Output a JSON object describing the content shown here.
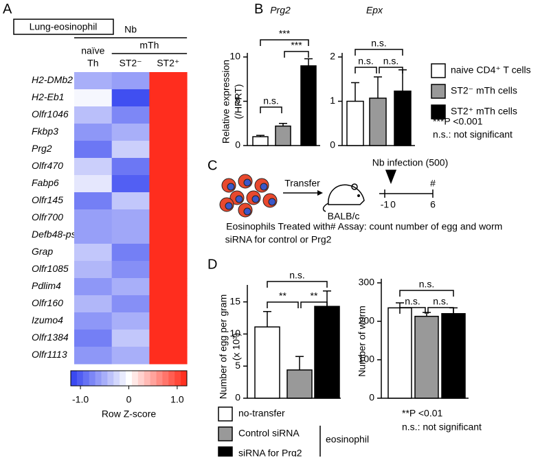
{
  "panel_labels": [
    "A",
    "B",
    "C",
    "D"
  ],
  "chart_data": [
    {
      "type": "heatmap",
      "title": "Lung-eosinophil",
      "groups": [
        {
          "label": "Nb",
          "span": [
            0,
            2
          ]
        },
        {
          "label": "mTh",
          "span": [
            1,
            2
          ]
        }
      ],
      "columns": [
        [
          "naïve",
          "Th"
        ],
        [
          "ST2⁻"
        ],
        [
          "ST2⁺"
        ]
      ],
      "rows": [
        "H2-DMb2",
        "H2-Eb1",
        "Olfr1046",
        "Fkbp3",
        "Prg2",
        "Olfr470",
        "Fabp6",
        "Olfr145",
        "Olfr700",
        "Defb48-ps",
        "Grap",
        "Olfr1085",
        "Pdlim4",
        "Olfr160",
        "Izumo4",
        "Olfr1384",
        "Olfr1113"
      ],
      "z": [
        [
          -0.5,
          -0.6,
          1.15
        ],
        [
          -0.05,
          -1.1,
          1.15
        ],
        [
          -0.4,
          -0.75,
          1.15
        ],
        [
          -0.65,
          -0.5,
          1.15
        ],
        [
          -0.85,
          -0.3,
          1.15
        ],
        [
          -0.3,
          -0.85,
          1.15
        ],
        [
          -0.15,
          -1.0,
          1.15
        ],
        [
          -0.8,
          -0.35,
          1.15
        ],
        [
          -0.6,
          -0.55,
          1.15
        ],
        [
          -0.6,
          -0.55,
          1.15
        ],
        [
          -0.35,
          -0.8,
          1.15
        ],
        [
          -0.45,
          -0.7,
          1.15
        ],
        [
          -0.65,
          -0.5,
          1.15
        ],
        [
          -0.45,
          -0.7,
          1.15
        ],
        [
          -0.65,
          -0.5,
          1.15
        ],
        [
          -0.8,
          -0.35,
          1.15
        ],
        [
          -0.65,
          -0.5,
          1.15
        ]
      ],
      "zlim": [
        -1.2,
        1.2
      ],
      "zticks": [
        {
          "value": -1,
          "label": "-1.0"
        },
        0,
        {
          "value": 1,
          "label": "1.0"
        }
      ],
      "colorbar_label": "Row Z-score",
      "colors": [
        "#2f3ff0",
        "#ffffff",
        "#ff2414"
      ]
    },
    {
      "type": "bar",
      "title": "Prg2",
      "y_label": [
        "Relative expression",
        "(/HPRT)"
      ],
      "values": [
        1.0,
        2.2,
        9.0
      ],
      "errors": [
        0.15,
        0.3,
        0.8
      ],
      "colors": [
        "#ffffff",
        "#999999",
        "#000000"
      ],
      "ylim": [
        0,
        10
      ],
      "yticks": [
        0,
        5,
        10
      ],
      "brackets": [
        {
          "label": "***",
          "between": [
            0,
            2
          ]
        },
        {
          "label": "***",
          "between": [
            1,
            2
          ]
        },
        {
          "label": "n.s.",
          "between": [
            0,
            1
          ]
        }
      ]
    },
    {
      "type": "bar",
      "title": "Epx",
      "values": [
        1.0,
        1.07,
        1.23
      ],
      "errors": [
        0.42,
        0.48,
        0.48
      ],
      "colors": [
        "#ffffff",
        "#999999",
        "#000000"
      ],
      "ylim": [
        0,
        2
      ],
      "yticks": [
        0,
        1,
        2
      ],
      "brackets": [
        {
          "label": "n.s.",
          "between": [
            0,
            2
          ]
        },
        {
          "label": "n.s.",
          "between": [
            0,
            1
          ]
        },
        {
          "label": "n.s.",
          "between": [
            1,
            2
          ]
        }
      ]
    },
    {
      "type": "bar",
      "y_label": [
        "Number of egg per gram",
        "(x 10³)"
      ],
      "values": [
        11.1,
        4.4,
        14.3
      ],
      "errors": [
        2.4,
        2.1,
        2.4
      ],
      "colors": [
        "#ffffff",
        "#999999",
        "#000000"
      ],
      "ylim": [
        0,
        17
      ],
      "yticks": [
        0,
        5,
        10,
        15
      ],
      "brackets": [
        {
          "label": "n.s.",
          "between": [
            0,
            2
          ]
        },
        {
          "label": "**",
          "between": [
            0,
            1
          ]
        },
        {
          "label": "**",
          "between": [
            1,
            2
          ]
        }
      ]
    },
    {
      "type": "bar",
      "y_label": [
        "Number of worm"
      ],
      "values": [
        235,
        213,
        220
      ],
      "errors": [
        13,
        10,
        15
      ],
      "colors": [
        "#ffffff",
        "#999999",
        "#000000"
      ],
      "ylim": [
        0,
        300
      ],
      "yticks": [
        0,
        100,
        200,
        300
      ],
      "brackets": [
        {
          "label": "n.s.",
          "between": [
            0,
            2
          ]
        },
        {
          "label": "n.s.",
          "between": [
            0,
            1
          ]
        },
        {
          "label": "n.s.",
          "between": [
            1,
            2
          ]
        }
      ]
    }
  ],
  "legend_b": [
    {
      "label": "naive CD4⁺ T cells",
      "color": "#ffffff"
    },
    {
      "label": "ST2⁻ mTh cells",
      "color": "#999999"
    },
    {
      "label": "ST2⁺ mTh cells",
      "color": "#000000"
    }
  ],
  "notes_b": [
    "***P <0.001",
    "n.s.: not significant"
  ],
  "diagram": {
    "infection": "Nb infection (500)",
    "transfer": "Transfer",
    "mouse": "BALB/c",
    "timeline": [
      "-1",
      "0",
      "6"
    ],
    "assay_mark": "#",
    "caption": [
      "Eosinophils Treated with",
      "siRNA for control or Prg2"
    ],
    "assay_note": "# Assay: count number of egg and worm"
  },
  "legend_d": [
    {
      "label": "no-transfer",
      "color": "#ffffff"
    },
    {
      "label": "Control siRNA",
      "color": "#999999"
    },
    {
      "label": "siRNA for Prg2",
      "color": "#000000"
    }
  ],
  "legend_d_group": "eosinophil",
  "notes_d": [
    "**P <0.01",
    "n.s.: not significant"
  ]
}
